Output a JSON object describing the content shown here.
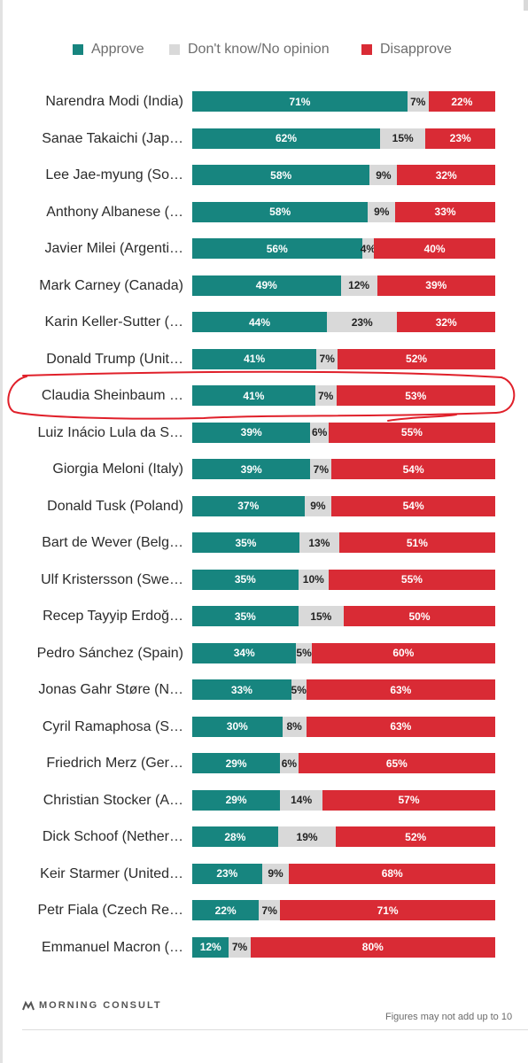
{
  "colors": {
    "approve": "#17857f",
    "dont_know": "#d9d9d9",
    "disapprove": "#d92b35",
    "highlight": "#e0202a"
  },
  "chart_data": {
    "type": "bar",
    "orientation": "horizontal",
    "stacked": true,
    "percent_stacked": true,
    "legend": {
      "position": "top",
      "items": [
        "Approve",
        "Don't know/No opinion",
        "Disapprove"
      ]
    },
    "categories": [
      "Narendra Modi (India)",
      "Sanae Takaichi (Jap…",
      "Lee Jae-myung (So…",
      "Anthony Albanese (…",
      "Javier Milei (Argenti…",
      "Mark Carney (Canada)",
      "Karin Keller-Sutter (…",
      "Donald Trump (Unit…",
      "Claudia Sheinbaum …",
      "Luiz Inácio Lula da S…",
      "Giorgia Meloni (Italy)",
      "Donald Tusk (Poland)",
      "Bart de Wever (Belg…",
      "Ulf Kristersson (Swe…",
      "Recep Tayyip Erdoğ…",
      "Pedro Sánchez (Spain)",
      "Jonas Gahr Støre (N…",
      "Cyril Ramaphosa (S…",
      "Friedrich Merz (Ger…",
      "Christian Stocker (A…",
      "Dick Schoof (Nether…",
      "Keir Starmer (United…",
      "Petr Fiala (Czech Re…",
      "Emmanuel Macron (…"
    ],
    "series": [
      {
        "name": "Approve",
        "values": [
          71,
          62,
          58,
          58,
          56,
          49,
          44,
          41,
          41,
          39,
          39,
          37,
          35,
          35,
          35,
          34,
          33,
          30,
          29,
          29,
          28,
          23,
          22,
          12
        ],
        "labels": [
          "71%",
          "62%",
          "58%",
          "58%",
          "56%",
          "49%",
          "44%",
          "41%",
          "41%",
          "39%",
          "39%",
          "37%",
          "35%",
          "35%",
          "35%",
          "34%",
          "33%",
          "30%",
          "29%",
          "29%",
          "28%",
          "23%",
          "22%",
          "12%"
        ]
      },
      {
        "name": "Don't know/No opinion",
        "values": [
          7,
          15,
          9,
          9,
          4,
          12,
          23,
          7,
          7,
          6,
          7,
          9,
          13,
          10,
          15,
          5,
          5,
          8,
          6,
          14,
          19,
          9,
          7,
          7
        ],
        "labels": [
          "7%",
          "15%",
          "9%",
          "9%",
          "4%",
          "12%",
          "23%",
          "7%",
          "7%",
          "6%",
          "7%",
          "9%",
          "13%",
          "10%",
          "15%",
          "5%",
          "5%",
          "8%",
          "6%",
          "14%",
          "19%",
          "9%",
          "7%",
          "7%"
        ]
      },
      {
        "name": "Disapprove",
        "values": [
          22,
          23,
          32,
          33,
          40,
          39,
          32,
          52,
          53,
          55,
          54,
          54,
          51,
          55,
          50,
          60,
          63,
          63,
          65,
          57,
          52,
          68,
          71,
          80
        ],
        "labels": [
          "22%",
          "23%",
          "32%",
          "33%",
          "40%",
          "39%",
          "32%",
          "52%",
          "53%",
          "55%",
          "54%",
          "54%",
          "51%",
          "55%",
          "50%",
          "60%",
          "63%",
          "63%",
          "65%",
          "57%",
          "52%",
          "68%",
          "71%",
          "80%"
        ]
      }
    ],
    "xlim": [
      0,
      100
    ],
    "highlighted_category": "Claudia Sheinbaum …"
  },
  "footer": {
    "brand": "MORNING CONSULT",
    "note": "Figures may not add up to 10"
  }
}
